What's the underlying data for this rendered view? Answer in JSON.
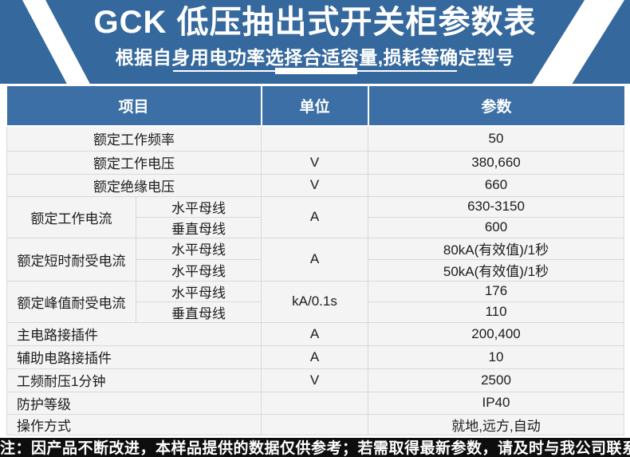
{
  "banner": {
    "title": "GCK 低压抽出式开关柜参数表",
    "subtitle": "根据自身用电功率选择合适容量,损耗等确定型号"
  },
  "table": {
    "headers": {
      "item": "项目",
      "unit": "单位",
      "param": "参数"
    },
    "rows": [
      {
        "item": "额定工作频率",
        "unit": "",
        "value": "50"
      },
      {
        "item": "额定工作电压",
        "unit": "V",
        "value": "380,660"
      },
      {
        "item": "额定绝缘电压",
        "unit": "V",
        "value": "660"
      },
      {
        "item": "额定工作电流",
        "subs": [
          "水平母线",
          "垂直母线"
        ],
        "unit": "A",
        "values": [
          "630-3150",
          "600"
        ]
      },
      {
        "item": "额定短时耐受电流",
        "subs": [
          "水平母线",
          "水平母线"
        ],
        "unit": "A",
        "values": [
          "80kA(有效值)/1秒",
          "50kA(有效值)/1秒"
        ]
      },
      {
        "item": "额定峰值耐受电流",
        "subs": [
          "水平母线",
          "垂直母线"
        ],
        "unit": "kA/0.1s",
        "values": [
          "176",
          "110"
        ]
      },
      {
        "item": "主电路接插件",
        "unit": "A",
        "value": "200,400"
      },
      {
        "item": "辅助电路接插件",
        "unit": "A",
        "value": "10"
      },
      {
        "item": "工频耐压1分钟",
        "unit": "V",
        "value": "2500"
      },
      {
        "item": "防护等级",
        "unit": "",
        "value": "IP40"
      },
      {
        "item": "操作方式",
        "unit": "",
        "value": "就地,远方,自动"
      }
    ]
  },
  "footer": {
    "note": "注：因产品不断改进，本样品提供的数据仅供参考；若需取得最新参数，请及时与我公司联系"
  },
  "colors": {
    "banner_blue": "#35689d",
    "header_blue": "#3b6fa6",
    "note_black": "#0e0e0e",
    "row_gray": "#f4f4f4",
    "border_gray": "#d9d9d9"
  }
}
